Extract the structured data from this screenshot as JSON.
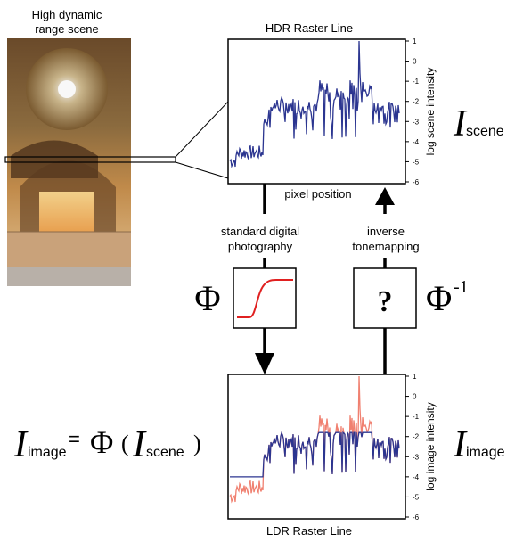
{
  "scene_caption": [
    "High dynamic",
    "range scene"
  ],
  "hdr_plot": {
    "title": "HDR Raster Line",
    "xlabel": "pixel position",
    "ylabel": "log scene intensity",
    "yticks": [
      "1",
      "0",
      "-1",
      "-2",
      "-3",
      "-4",
      "-5",
      "-6"
    ],
    "line_color": "#2b3590"
  },
  "ldr_plot": {
    "title": "LDR Raster Line",
    "ylabel": "log image intensity",
    "yticks": [
      "1",
      "0",
      "-1",
      "-2",
      "-3",
      "-4",
      "-5",
      "-6"
    ],
    "clip_color": "#f08070",
    "line_color": "#2b3590"
  },
  "forward_label": [
    "standard digital",
    "photography"
  ],
  "inverse_label": [
    "inverse",
    "tonemapping"
  ],
  "phi_symbol": "Φ",
  "phi_inv_symbol": "Φ",
  "phi_inv_exp": "-1",
  "question_mark": "?",
  "i_scene": {
    "I": "I",
    "sub": "scene"
  },
  "i_image": {
    "I": "I",
    "sub": "image"
  },
  "equation": {
    "I1": "I",
    "sub1": "image",
    "eq": "=",
    "phi": "Φ",
    "lp": "(",
    "I2": "I",
    "sub2": "scene",
    "rp": ")"
  },
  "curve_color": "#e02020",
  "question_color": "#e02020"
}
